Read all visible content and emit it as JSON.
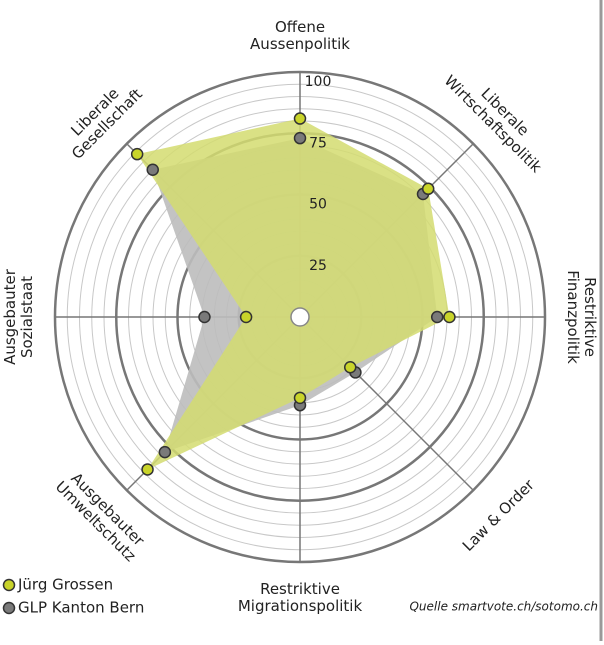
{
  "chart_data": {
    "type": "radar",
    "categories": [
      [
        "Offene",
        "Aussenpolitik"
      ],
      [
        "Liberale",
        "Wirtschaftspolitik"
      ],
      [
        "Restriktive",
        "Finanzpolitik"
      ],
      [
        "Law & Order"
      ],
      [
        "Restriktive",
        "Migrationspolitik"
      ],
      [
        "Ausgebauter",
        "Umweltschutz"
      ],
      [
        "Ausgebauter",
        "Sozialstaat"
      ],
      [
        "Liberale",
        "Gesellschaft"
      ]
    ],
    "series": [
      {
        "name": "GLP Kanton Bern",
        "color": "#7a7a7a",
        "fill": "#bdbdbd",
        "values": [
          73,
          71,
          56,
          32,
          36,
          78,
          39,
          85
        ]
      },
      {
        "name": "Jürg Grossen",
        "color": "#c9d42a",
        "fill": "#d3dc70",
        "values": [
          81,
          74,
          61,
          29,
          33,
          88,
          22,
          94
        ]
      }
    ],
    "rlim": [
      0,
      100
    ],
    "rticks": [
      25,
      50,
      75,
      100
    ],
    "source": "Quelle smartvote.ch/sotomo.ch"
  }
}
